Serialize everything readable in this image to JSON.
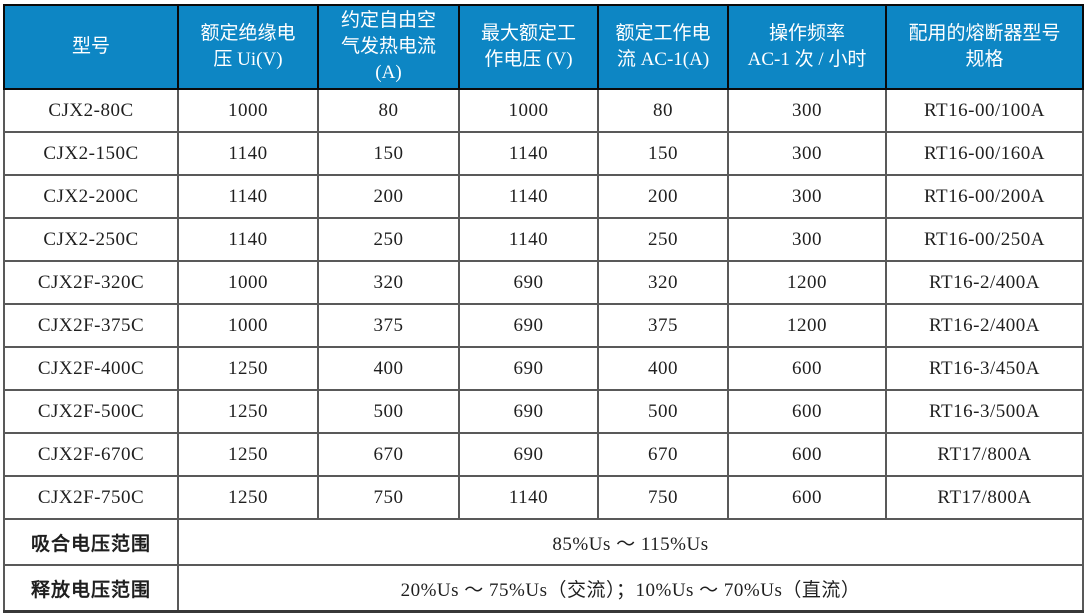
{
  "table": {
    "title_semantic": "contactor-specifications",
    "colors": {
      "header_bg": "#0d86c4",
      "header_text": "#ffffff",
      "grid_line": "#595959",
      "outer_border": "#383838",
      "body_text": "#1f1f1f"
    },
    "columns": [
      "型号",
      "额定绝缘电\n压 Ui(V)",
      "约定自由空\n气发热电流\n(A)",
      "最大额定工\n作电压 (V)",
      "额定工作电\n流 AC-1(A)",
      "操作频率\nAC-1 次 / 小时",
      "配用的熔断器型号\n规格"
    ],
    "rows": [
      [
        "CJX2-80C",
        "1000",
        "80",
        "1000",
        "80",
        "300",
        "RT16-00/100A"
      ],
      [
        "CJX2-150C",
        "1140",
        "150",
        "1140",
        "150",
        "300",
        "RT16-00/160A"
      ],
      [
        "CJX2-200C",
        "1140",
        "200",
        "1140",
        "200",
        "300",
        "RT16-00/200A"
      ],
      [
        "CJX2-250C",
        "1140",
        "250",
        "1140",
        "250",
        "300",
        "RT16-00/250A"
      ],
      [
        "CJX2F-320C",
        "1000",
        "320",
        "690",
        "320",
        "1200",
        "RT16-2/400A"
      ],
      [
        "CJX2F-375C",
        "1000",
        "375",
        "690",
        "375",
        "1200",
        "RT16-2/400A"
      ],
      [
        "CJX2F-400C",
        "1250",
        "400",
        "690",
        "400",
        "600",
        "RT16-3/450A"
      ],
      [
        "CJX2F-500C",
        "1250",
        "500",
        "690",
        "500",
        "600",
        "RT16-3/500A"
      ],
      [
        "CJX2F-670C",
        "1250",
        "670",
        "690",
        "670",
        "600",
        "RT17/800A"
      ],
      [
        "CJX2F-750C",
        "1250",
        "750",
        "1140",
        "750",
        "600",
        "RT17/800A"
      ]
    ],
    "footer": [
      {
        "label": "吸合电压范围",
        "value": "85%Us ～ 115%Us"
      },
      {
        "label": "释放电压范围",
        "value": "20%Us ～ 75%Us（交流）；10%Us ～ 70%Us（直流）"
      }
    ]
  }
}
